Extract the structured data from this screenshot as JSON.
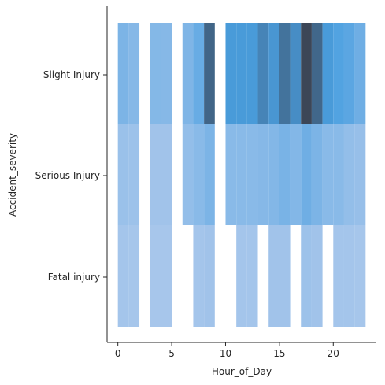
{
  "chart_data": {
    "type": "heatmap",
    "xlabel": "Hour_of_Day",
    "ylabel": "Accident_severity",
    "xlim": [
      -1,
      24
    ],
    "x_ticks": [
      0,
      5,
      10,
      15,
      20
    ],
    "x_bin_edges": [
      0,
      1,
      2,
      3,
      4,
      5,
      6,
      7,
      8,
      9,
      10,
      11,
      12,
      13,
      14,
      15,
      16,
      17,
      18,
      19,
      20,
      21,
      22,
      23
    ],
    "categories": [
      "Fatal injury",
      "Serious Injury",
      "Slight Injury"
    ],
    "grid": false,
    "legend": "none",
    "colors": {
      "low": "#aec9ec",
      "mid": "#4a9fe0",
      "high": "#3c4657"
    },
    "intensity": {
      "Slight Injury": [
        0.3,
        0.24,
        0,
        0.25,
        0.24,
        0,
        0.28,
        0.42,
        0.86,
        0,
        0.62,
        0.62,
        0.62,
        0.72,
        0.64,
        0.8,
        0.68,
        1.0,
        0.85,
        0.62,
        0.55,
        0.5,
        0.38
      ],
      "Serious Injury": [
        0.12,
        0.1,
        0,
        0.08,
        0.08,
        0,
        0.16,
        0.22,
        0.3,
        0,
        0.22,
        0.22,
        0.22,
        0.24,
        0.26,
        0.32,
        0.26,
        0.38,
        0.3,
        0.22,
        0.22,
        0.16,
        0.14
      ],
      "Fatal injury": [
        0.06,
        0.05,
        0,
        0.04,
        0.04,
        0,
        0,
        0.06,
        0.08,
        0,
        0,
        0.06,
        0.06,
        0,
        0.08,
        0.08,
        0,
        0.1,
        0.08,
        0,
        0.06,
        0.06,
        0.05
      ]
    }
  }
}
